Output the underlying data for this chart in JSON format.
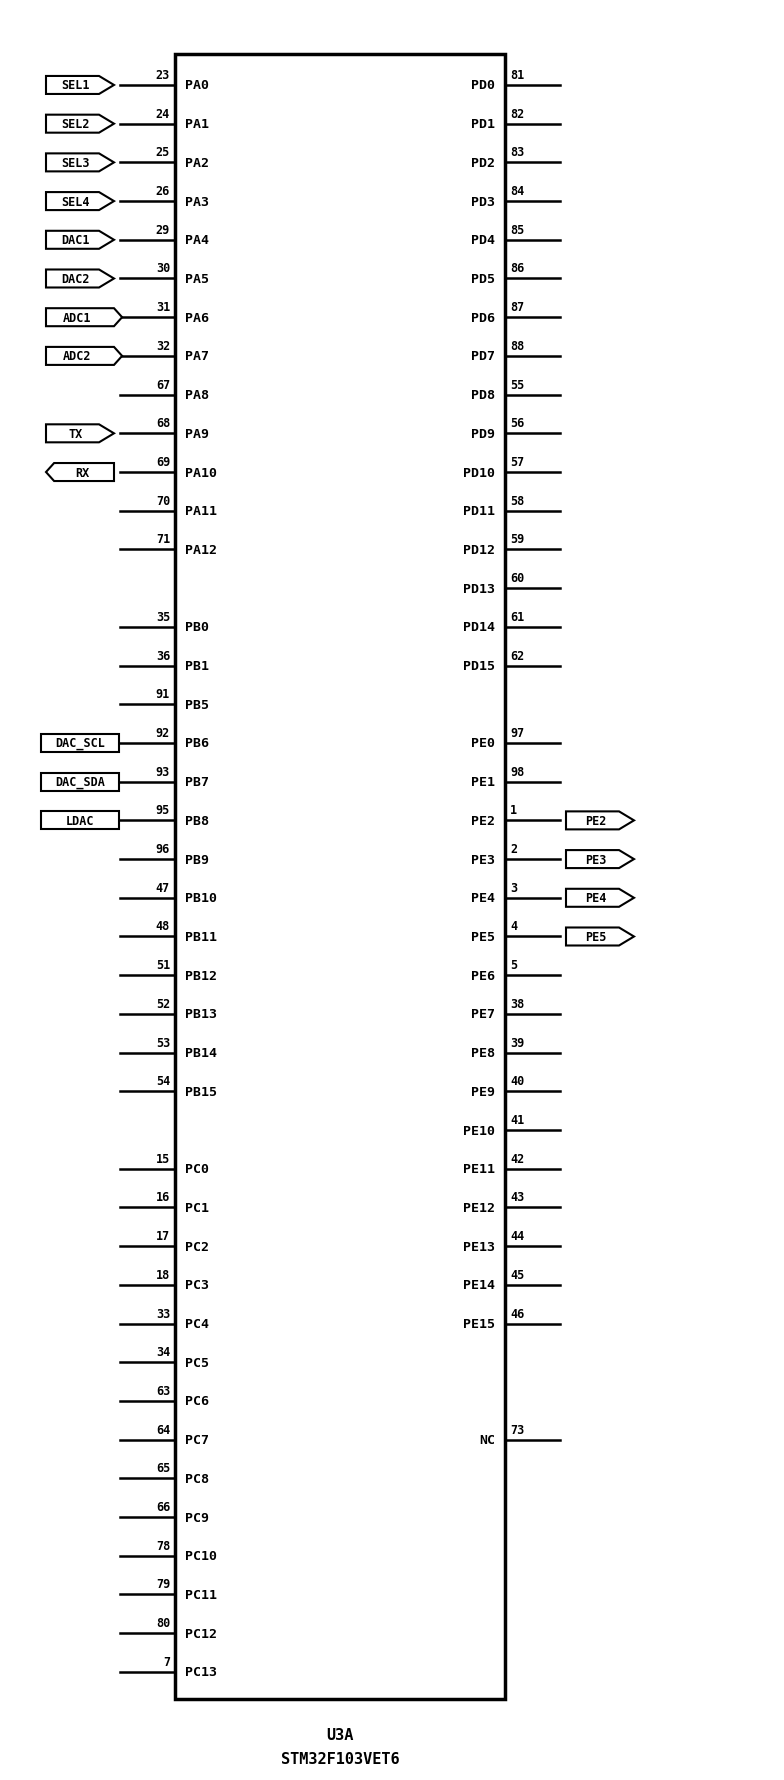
{
  "fig_width": 7.84,
  "fig_height": 17.81,
  "title1": "U3A",
  "title2": "STM32F103VET6",
  "left_pins": [
    {
      "name": "SEL1",
      "pin_num": "23",
      "port": "PA0",
      "shape": "arrow_in",
      "row": 0
    },
    {
      "name": "SEL2",
      "pin_num": "24",
      "port": "PA1",
      "shape": "arrow_in",
      "row": 1
    },
    {
      "name": "SEL3",
      "pin_num": "25",
      "port": "PA2",
      "shape": "arrow_in",
      "row": 2
    },
    {
      "name": "SEL4",
      "pin_num": "26",
      "port": "PA3",
      "shape": "arrow_in",
      "row": 3
    },
    {
      "name": "DAC1",
      "pin_num": "29",
      "port": "PA4",
      "shape": "arrow_in",
      "row": 4
    },
    {
      "name": "DAC2",
      "pin_num": "30",
      "port": "PA5",
      "shape": "arrow_in",
      "row": 5
    },
    {
      "name": "ADC1",
      "pin_num": "31",
      "port": "PA6",
      "shape": "rect_arrow",
      "row": 6
    },
    {
      "name": "ADC2",
      "pin_num": "32",
      "port": "PA7",
      "shape": "rect_arrow",
      "row": 7
    },
    {
      "name": "",
      "pin_num": "67",
      "port": "PA8",
      "shape": "line",
      "row": 8
    },
    {
      "name": "TX",
      "pin_num": "68",
      "port": "PA9",
      "shape": "arrow_in",
      "row": 9
    },
    {
      "name": "RX",
      "pin_num": "69",
      "port": "PA10",
      "shape": "rect_out",
      "row": 10
    },
    {
      "name": "",
      "pin_num": "70",
      "port": "PA11",
      "shape": "line",
      "row": 11
    },
    {
      "name": "",
      "pin_num": "71",
      "port": "PA12",
      "shape": "line",
      "row": 12
    },
    {
      "name": "",
      "pin_num": "35",
      "port": "PB0",
      "shape": "line",
      "row": 14
    },
    {
      "name": "",
      "pin_num": "36",
      "port": "PB1",
      "shape": "line",
      "row": 15
    },
    {
      "name": "",
      "pin_num": "91",
      "port": "PB5",
      "shape": "line",
      "row": 16
    },
    {
      "name": "DAC_SCL",
      "pin_num": "92",
      "port": "PB6",
      "shape": "rect_plain",
      "row": 17
    },
    {
      "name": "DAC_SDA",
      "pin_num": "93",
      "port": "PB7",
      "shape": "rect_plain",
      "row": 18
    },
    {
      "name": "LDAC",
      "pin_num": "95",
      "port": "PB8",
      "shape": "rect_plain",
      "row": 19
    },
    {
      "name": "",
      "pin_num": "96",
      "port": "PB9",
      "shape": "line",
      "row": 20
    },
    {
      "name": "",
      "pin_num": "47",
      "port": "PB10",
      "shape": "line",
      "row": 21
    },
    {
      "name": "",
      "pin_num": "48",
      "port": "PB11",
      "shape": "line",
      "row": 22
    },
    {
      "name": "",
      "pin_num": "51",
      "port": "PB12",
      "shape": "line",
      "row": 23
    },
    {
      "name": "",
      "pin_num": "52",
      "port": "PB13",
      "shape": "line",
      "row": 24
    },
    {
      "name": "",
      "pin_num": "53",
      "port": "PB14",
      "shape": "line",
      "row": 25
    },
    {
      "name": "",
      "pin_num": "54",
      "port": "PB15",
      "shape": "line",
      "row": 26
    },
    {
      "name": "",
      "pin_num": "15",
      "port": "PC0",
      "shape": "line",
      "row": 28
    },
    {
      "name": "",
      "pin_num": "16",
      "port": "PC1",
      "shape": "line",
      "row": 29
    },
    {
      "name": "",
      "pin_num": "17",
      "port": "PC2",
      "shape": "line",
      "row": 30
    },
    {
      "name": "",
      "pin_num": "18",
      "port": "PC3",
      "shape": "line",
      "row": 31
    },
    {
      "name": "",
      "pin_num": "33",
      "port": "PC4",
      "shape": "line",
      "row": 32
    },
    {
      "name": "",
      "pin_num": "34",
      "port": "PC5",
      "shape": "line",
      "row": 33
    },
    {
      "name": "",
      "pin_num": "63",
      "port": "PC6",
      "shape": "line",
      "row": 34
    },
    {
      "name": "",
      "pin_num": "64",
      "port": "PC7",
      "shape": "line",
      "row": 35
    },
    {
      "name": "",
      "pin_num": "65",
      "port": "PC8",
      "shape": "line",
      "row": 36
    },
    {
      "name": "",
      "pin_num": "66",
      "port": "PC9",
      "shape": "line",
      "row": 37
    },
    {
      "name": "",
      "pin_num": "78",
      "port": "PC10",
      "shape": "line",
      "row": 38
    },
    {
      "name": "",
      "pin_num": "79",
      "port": "PC11",
      "shape": "line",
      "row": 39
    },
    {
      "name": "",
      "pin_num": "80",
      "port": "PC12",
      "shape": "line",
      "row": 40
    },
    {
      "name": "",
      "pin_num": "7",
      "port": "PC13",
      "shape": "line",
      "row": 41
    }
  ],
  "right_pins": [
    {
      "name": "PD0",
      "pin_num": "81",
      "port": "PD0",
      "shape": "line",
      "row": 0
    },
    {
      "name": "PD1",
      "pin_num": "82",
      "port": "PD1",
      "shape": "line",
      "row": 1
    },
    {
      "name": "PD2",
      "pin_num": "83",
      "port": "PD2",
      "shape": "line",
      "row": 2
    },
    {
      "name": "PD3",
      "pin_num": "84",
      "port": "PD3",
      "shape": "line",
      "row": 3
    },
    {
      "name": "PD4",
      "pin_num": "85",
      "port": "PD4",
      "shape": "line",
      "row": 4
    },
    {
      "name": "PD5",
      "pin_num": "86",
      "port": "PD5",
      "shape": "line",
      "row": 5
    },
    {
      "name": "PD6",
      "pin_num": "87",
      "port": "PD6",
      "shape": "line",
      "row": 6
    },
    {
      "name": "PD7",
      "pin_num": "88",
      "port": "PD7",
      "shape": "line",
      "row": 7
    },
    {
      "name": "PD8",
      "pin_num": "55",
      "port": "PD8",
      "shape": "line",
      "row": 8
    },
    {
      "name": "PD9",
      "pin_num": "56",
      "port": "PD9",
      "shape": "line",
      "row": 9
    },
    {
      "name": "PD10",
      "pin_num": "57",
      "port": "PD10",
      "shape": "line",
      "row": 10
    },
    {
      "name": "PD11",
      "pin_num": "58",
      "port": "PD11",
      "shape": "line",
      "row": 11
    },
    {
      "name": "PD12",
      "pin_num": "59",
      "port": "PD12",
      "shape": "line",
      "row": 12
    },
    {
      "name": "PD13",
      "pin_num": "60",
      "port": "PD13",
      "shape": "line",
      "row": 13
    },
    {
      "name": "PD14",
      "pin_num": "61",
      "port": "PD14",
      "shape": "line",
      "row": 14
    },
    {
      "name": "PD15",
      "pin_num": "62",
      "port": "PD15",
      "shape": "line",
      "row": 15
    },
    {
      "name": "PE0",
      "pin_num": "97",
      "port": "PE0",
      "shape": "line",
      "row": 17
    },
    {
      "name": "PE1",
      "pin_num": "98",
      "port": "PE1",
      "shape": "line",
      "row": 18
    },
    {
      "name": "PE2",
      "pin_num": "1",
      "port": "PE2",
      "shape": "arrow_out",
      "row": 19
    },
    {
      "name": "PE3",
      "pin_num": "2",
      "port": "PE3",
      "shape": "arrow_out",
      "row": 20
    },
    {
      "name": "PE4",
      "pin_num": "3",
      "port": "PE4",
      "shape": "arrow_out",
      "row": 21
    },
    {
      "name": "PE5",
      "pin_num": "4",
      "port": "PE5",
      "shape": "arrow_out",
      "row": 22
    },
    {
      "name": "PE6",
      "pin_num": "5",
      "port": "PE6",
      "shape": "line",
      "row": 23
    },
    {
      "name": "PE7",
      "pin_num": "38",
      "port": "PE7",
      "shape": "line",
      "row": 24
    },
    {
      "name": "PE8",
      "pin_num": "39",
      "port": "PE8",
      "shape": "line",
      "row": 25
    },
    {
      "name": "PE9",
      "pin_num": "40",
      "port": "PE9",
      "shape": "line",
      "row": 26
    },
    {
      "name": "PE10",
      "pin_num": "41",
      "port": "PE10",
      "shape": "line",
      "row": 27
    },
    {
      "name": "PE11",
      "pin_num": "42",
      "port": "PE11",
      "shape": "line",
      "row": 28
    },
    {
      "name": "PE12",
      "pin_num": "43",
      "port": "PE12",
      "shape": "line",
      "row": 29
    },
    {
      "name": "PE13",
      "pin_num": "44",
      "port": "PE13",
      "shape": "line",
      "row": 30
    },
    {
      "name": "PE14",
      "pin_num": "45",
      "port": "PE14",
      "shape": "line",
      "row": 31
    },
    {
      "name": "PE15",
      "pin_num": "46",
      "port": "PE15",
      "shape": "line",
      "row": 32
    },
    {
      "name": "NC",
      "pin_num": "73",
      "port": "NC",
      "shape": "line",
      "row": 35
    }
  ]
}
